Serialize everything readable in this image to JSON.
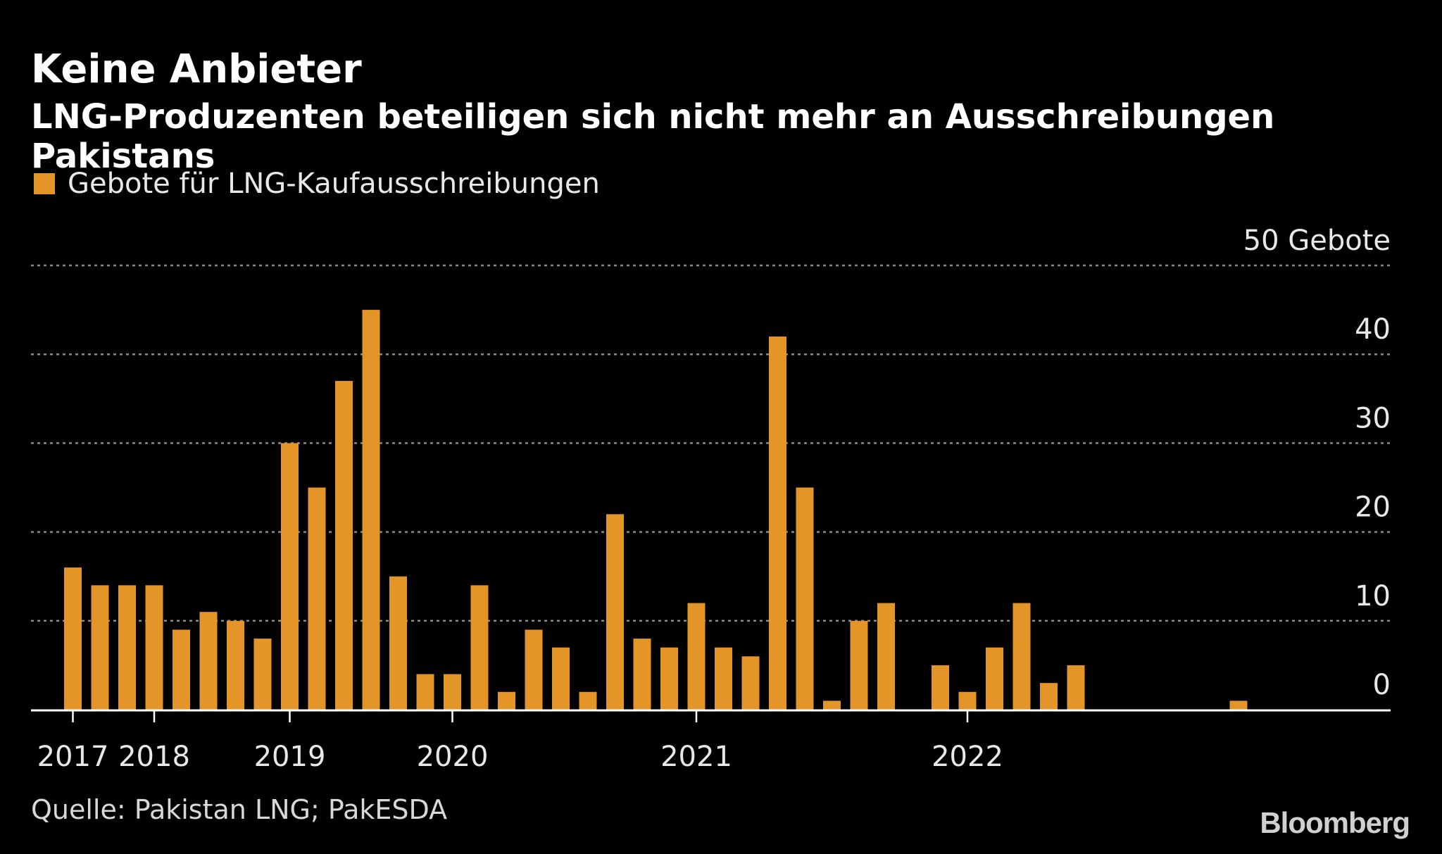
{
  "title": "Keine Anbieter",
  "subtitle": "LNG-Produzenten beteiligen sich nicht mehr an Ausschreibungen Pakistans",
  "source": "Quelle: Pakistan LNG; PakESDA",
  "logo": "Bloomberg",
  "colors": {
    "bar": "#E39528",
    "background": "#000000",
    "grid": "#8a8a8a"
  },
  "chart_data": {
    "type": "bar",
    "legend": [
      "Gebote für LNG-Kaufausschreibungen"
    ],
    "legend_position": "top-left",
    "y_unit_label": "Gebote",
    "ylim": [
      0,
      50
    ],
    "y_ticks": [
      {
        "value": 0,
        "label": "0"
      },
      {
        "value": 10,
        "label": "10"
      },
      {
        "value": 20,
        "label": "20"
      },
      {
        "value": 30,
        "label": "30"
      },
      {
        "value": 40,
        "label": "40"
      },
      {
        "value": 50,
        "label": "50"
      }
    ],
    "grid": true,
    "x_year_labels": [
      {
        "label": "2017",
        "bar_index": 0
      },
      {
        "label": "2018",
        "bar_index": 3
      },
      {
        "label": "2019",
        "bar_index": 8
      },
      {
        "label": "2020",
        "bar_index": 14
      },
      {
        "label": "2021",
        "bar_index": 23
      },
      {
        "label": "2022",
        "bar_index": 33
      }
    ],
    "values": [
      16,
      14,
      14,
      14,
      9,
      11,
      10,
      8,
      30,
      25,
      37,
      45,
      15,
      4,
      4,
      14,
      2,
      9,
      7,
      2,
      22,
      8,
      7,
      12,
      7,
      6,
      42,
      25,
      1,
      10,
      12,
      0,
      5,
      2,
      7,
      12,
      3,
      5,
      0,
      0,
      0,
      0,
      0,
      1,
      0,
      0
    ]
  }
}
